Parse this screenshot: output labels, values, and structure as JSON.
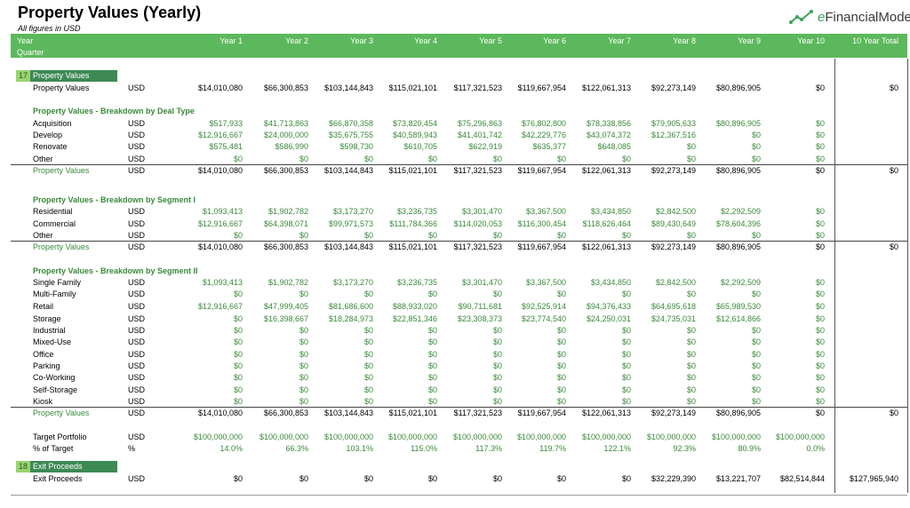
{
  "header": {
    "title": "Property Values (Yearly)",
    "subtitle": "All figures in USD",
    "logo_text_e": "e",
    "logo_text_rest": "FinancialModels",
    "row1_label": "Year",
    "row2_label": "Quarter",
    "columns": [
      "Year 1",
      "Year 2",
      "Year 3",
      "Year 4",
      "Year 5",
      "Year 6",
      "Year 7",
      "Year 8",
      "Year 9",
      "Year 10",
      "10 Year Total"
    ]
  },
  "colors": {
    "header_bg": "#5cb85c",
    "section_bg": "#3d8a55",
    "section_num_bg": "#9bd36f",
    "green_text": "#3a8a3a"
  },
  "sections": [
    {
      "num": "17",
      "label": "Property Values"
    },
    {
      "num": "18",
      "label": "Exit Proceeds"
    }
  ],
  "rows": [
    {
      "type": "data",
      "label": "Property Values",
      "unit": "USD",
      "values": [
        "$14,010,080",
        "$66,300,853",
        "$103,144,843",
        "$115,021,101",
        "$117,321,523",
        "$119,667,954",
        "$122,061,313",
        "$92,273,149",
        "$80,896,905",
        "$0",
        "$0"
      ]
    },
    {
      "type": "group",
      "label": "Property Values - Breakdown by Deal Type"
    },
    {
      "type": "sub",
      "label": "Acquisition",
      "unit": "USD",
      "values": [
        "$517,933",
        "$41,713,863",
        "$66,870,358",
        "$73,820,454",
        "$75,296,863",
        "$76,802,800",
        "$78,338,856",
        "$79,905,633",
        "$80,896,905",
        "$0",
        ""
      ]
    },
    {
      "type": "sub",
      "label": "Develop",
      "unit": "USD",
      "values": [
        "$12,916,667",
        "$24,000,000",
        "$35,675,755",
        "$40,589,943",
        "$41,401,742",
        "$42,229,776",
        "$43,074,372",
        "$12,367,516",
        "$0",
        "$0",
        ""
      ]
    },
    {
      "type": "sub",
      "label": "Renovate",
      "unit": "USD",
      "values": [
        "$575,481",
        "$586,990",
        "$598,730",
        "$610,705",
        "$622,919",
        "$635,377",
        "$648,085",
        "$0",
        "$0",
        "$0",
        ""
      ]
    },
    {
      "type": "sub",
      "label": "Other",
      "unit": "USD",
      "values": [
        "$0",
        "$0",
        "$0",
        "$0",
        "$0",
        "$0",
        "$0",
        "$0",
        "$0",
        "$0",
        ""
      ]
    },
    {
      "type": "total",
      "label": "Property Values",
      "unit": "USD",
      "values": [
        "$14,010,080",
        "$66,300,853",
        "$103,144,843",
        "$115,021,101",
        "$117,321,523",
        "$119,667,954",
        "$122,061,313",
        "$92,273,149",
        "$80,896,905",
        "$0",
        "$0"
      ]
    },
    {
      "type": "group",
      "label": "Property Values - Breakdown by Segment I"
    },
    {
      "type": "sub",
      "label": "Residential",
      "unit": "USD",
      "values": [
        "$1,093,413",
        "$1,902,782",
        "$3,173,270",
        "$3,236,735",
        "$3,301,470",
        "$3,367,500",
        "$3,434,850",
        "$2,842,500",
        "$2,292,509",
        "$0",
        ""
      ]
    },
    {
      "type": "sub",
      "label": "Commercial",
      "unit": "USD",
      "values": [
        "$12,916,667",
        "$64,398,071",
        "$99,971,573",
        "$111,784,366",
        "$114,020,053",
        "$116,300,454",
        "$118,626,464",
        "$89,430,649",
        "$78,604,396",
        "$0",
        ""
      ]
    },
    {
      "type": "sub",
      "label": "Other",
      "unit": "USD",
      "values": [
        "$0",
        "$0",
        "$0",
        "$0",
        "$0",
        "$0",
        "$0",
        "$0",
        "$0",
        "$0",
        ""
      ]
    },
    {
      "type": "total",
      "label": "Property Values",
      "unit": "USD",
      "values": [
        "$14,010,080",
        "$66,300,853",
        "$103,144,843",
        "$115,021,101",
        "$117,321,523",
        "$119,667,954",
        "$122,061,313",
        "$92,273,149",
        "$80,896,905",
        "$0",
        "$0"
      ]
    },
    {
      "type": "group",
      "label": "Property Values - Breakdown by Segment II"
    },
    {
      "type": "sub",
      "label": "Single Family",
      "unit": "USD",
      "values": [
        "$1,093,413",
        "$1,902,782",
        "$3,173,270",
        "$3,236,735",
        "$3,301,470",
        "$3,367,500",
        "$3,434,850",
        "$2,842,500",
        "$2,292,509",
        "$0",
        ""
      ]
    },
    {
      "type": "sub",
      "label": "Multi-Family",
      "unit": "USD",
      "values": [
        "$0",
        "$0",
        "$0",
        "$0",
        "$0",
        "$0",
        "$0",
        "$0",
        "$0",
        "$0",
        ""
      ]
    },
    {
      "type": "sub",
      "label": "Retail",
      "unit": "USD",
      "values": [
        "$12,916,667",
        "$47,999,405",
        "$81,686,600",
        "$88,933,020",
        "$90,711,681",
        "$92,525,914",
        "$94,376,433",
        "$64,695,618",
        "$65,989,530",
        "$0",
        ""
      ]
    },
    {
      "type": "sub",
      "label": "Storage",
      "unit": "USD",
      "values": [
        "$0",
        "$16,398,667",
        "$18,284,973",
        "$22,851,346",
        "$23,308,373",
        "$23,774,540",
        "$24,250,031",
        "$24,735,031",
        "$12,614,866",
        "$0",
        ""
      ]
    },
    {
      "type": "sub",
      "label": "Industrial",
      "unit": "USD",
      "values": [
        "$0",
        "$0",
        "$0",
        "$0",
        "$0",
        "$0",
        "$0",
        "$0",
        "$0",
        "$0",
        ""
      ]
    },
    {
      "type": "sub",
      "label": "Mixed-Use",
      "unit": "USD",
      "values": [
        "$0",
        "$0",
        "$0",
        "$0",
        "$0",
        "$0",
        "$0",
        "$0",
        "$0",
        "$0",
        ""
      ]
    },
    {
      "type": "sub",
      "label": "Office",
      "unit": "USD",
      "values": [
        "$0",
        "$0",
        "$0",
        "$0",
        "$0",
        "$0",
        "$0",
        "$0",
        "$0",
        "$0",
        ""
      ]
    },
    {
      "type": "sub",
      "label": "Parking",
      "unit": "USD",
      "values": [
        "$0",
        "$0",
        "$0",
        "$0",
        "$0",
        "$0",
        "$0",
        "$0",
        "$0",
        "$0",
        ""
      ]
    },
    {
      "type": "sub",
      "label": "Co-Working",
      "unit": "USD",
      "values": [
        "$0",
        "$0",
        "$0",
        "$0",
        "$0",
        "$0",
        "$0",
        "$0",
        "$0",
        "$0",
        ""
      ]
    },
    {
      "type": "sub",
      "label": "Self-Storage",
      "unit": "USD",
      "values": [
        "$0",
        "$0",
        "$0",
        "$0",
        "$0",
        "$0",
        "$0",
        "$0",
        "$0",
        "$0",
        ""
      ]
    },
    {
      "type": "sub",
      "label": "Kiosk",
      "unit": "USD",
      "values": [
        "$0",
        "$0",
        "$0",
        "$0",
        "$0",
        "$0",
        "$0",
        "$0",
        "$0",
        "$0",
        ""
      ]
    },
    {
      "type": "total",
      "label": "Property Values",
      "unit": "USD",
      "values": [
        "$14,010,080",
        "$66,300,853",
        "$103,144,843",
        "$115,021,101",
        "$117,321,523",
        "$119,667,954",
        "$122,061,313",
        "$92,273,149",
        "$80,896,905",
        "$0",
        "$0"
      ]
    },
    {
      "type": "sub",
      "label": "Target Portfolio",
      "unit": "USD",
      "values": [
        "$100,000,000",
        "$100,000,000",
        "$100,000,000",
        "$100,000,000",
        "$100,000,000",
        "$100,000,000",
        "$100,000,000",
        "$100,000,000",
        "$100,000,000",
        "$100,000,000",
        ""
      ]
    },
    {
      "type": "sub",
      "label": "% of Target",
      "unit": "%",
      "values": [
        "14.0%",
        "66.3%",
        "103.1%",
        "115.0%",
        "117.3%",
        "119.7%",
        "122.1%",
        "92.3%",
        "80.9%",
        "0.0%",
        ""
      ]
    },
    {
      "type": "data",
      "label": "Exit Proceeds",
      "unit": "USD",
      "values": [
        "$0",
        "$0",
        "$0",
        "$0",
        "$0",
        "$0",
        "$0",
        "$32,229,390",
        "$13,221,707",
        "$82,514,844",
        "$127,965,940"
      ]
    }
  ]
}
